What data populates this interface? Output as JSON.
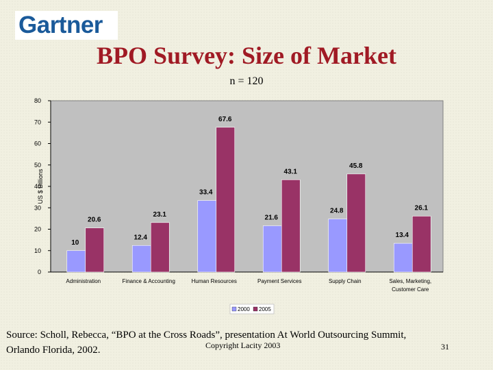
{
  "logo": {
    "text": "Gartner"
  },
  "slide": {
    "title": "BPO Survey: Size of Market",
    "subtitle": "n = 120",
    "source_line1": "Source: Scholl, Rebecca, “BPO at the Cross Roads”, presentation At World Outsourcing Summit,",
    "source_line2": "Orlando Florida, 2002.",
    "copyright": "Copyright Lacity 2003",
    "page_number": "31"
  },
  "chart_data": {
    "type": "bar",
    "title": "",
    "xlabel": "",
    "ylabel": "US $ Billions",
    "ylim": [
      0,
      80
    ],
    "yticks": [
      0,
      10,
      20,
      30,
      40,
      50,
      60,
      70,
      80
    ],
    "categories": [
      [
        "Administration"
      ],
      [
        "Finance & Accounting"
      ],
      [
        "Human Resources"
      ],
      [
        "Payment Services"
      ],
      [
        "Supply Chain"
      ],
      [
        "Sales, Marketing,",
        "Customer Care"
      ]
    ],
    "series": [
      {
        "name": "2000",
        "color": "#9999ff",
        "values": [
          10,
          12.4,
          33.4,
          21.6,
          24.8,
          13.4
        ]
      },
      {
        "name": "2005",
        "color": "#993366",
        "values": [
          20.6,
          23.1,
          67.6,
          43.1,
          45.8,
          26.1
        ]
      }
    ],
    "legend_position": "bottom-center",
    "grid": false,
    "plot_background": "#c0c0c0"
  }
}
